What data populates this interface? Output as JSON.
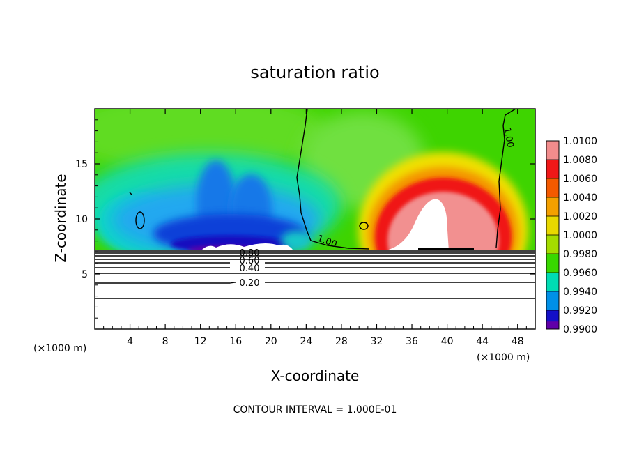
{
  "chart_data": {
    "type": "heatmap",
    "title": "saturation ratio",
    "xlabel": "X-coordinate",
    "ylabel": "Z-coordinate",
    "x_unit_left": "(×1000 m)",
    "x_unit_right": "(×1000 m)",
    "footer": "CONTOUR INTERVAL = 1.000E-01",
    "xlim": [
      0,
      50
    ],
    "ylim": [
      0,
      20
    ],
    "x_ticks": [
      "4",
      "8",
      "12",
      "16",
      "20",
      "24",
      "28",
      "32",
      "36",
      "40",
      "44",
      "48"
    ],
    "x_tick_values": [
      4,
      8,
      12,
      16,
      20,
      24,
      28,
      32,
      36,
      40,
      44,
      48
    ],
    "y_ticks": [
      "5",
      "10",
      "15"
    ],
    "y_tick_values": [
      5,
      10,
      15
    ],
    "colorbar": {
      "labels": [
        "1.0100",
        "1.0080",
        "1.0060",
        "1.0040",
        "1.0020",
        "1.0000",
        "0.9980",
        "0.9960",
        "0.9940",
        "0.9920",
        "0.9900"
      ],
      "values": [
        1.01,
        1.008,
        1.006,
        1.004,
        1.002,
        1.0,
        0.998,
        0.996,
        0.994,
        0.992,
        0.99
      ],
      "colors": [
        "#f28c8c",
        "#f01818",
        "#f45a00",
        "#f4a000",
        "#e8d800",
        "#a4dc00",
        "#38d800",
        "#00dcb4",
        "#0090e8",
        "#1410c8",
        "#6000a8"
      ]
    },
    "contour_levels_labeled": [
      "0.80",
      "0.60",
      "0.40",
      "0.20",
      "1.00",
      "1.00"
    ],
    "contour_line_z": [
      2.8,
      4.2,
      5.1,
      5.8,
      6.2,
      6.5,
      6.8,
      7.0,
      7.2
    ],
    "cloud_base_z": 7.25,
    "features": [
      {
        "kind": "dry-region",
        "x_range": [
          4,
          23
        ],
        "z_range": [
          7.2,
          14
        ],
        "value": 0.992
      },
      {
        "kind": "supersaturated-arch",
        "x_range": [
          31,
          46.5
        ],
        "z_range": [
          7.2,
          15
        ],
        "value": 1.006
      },
      {
        "kind": "saturated-interior",
        "x_range": [
          36,
          41
        ],
        "z_range": [
          7.2,
          12
        ],
        "value": 1.01
      }
    ]
  }
}
